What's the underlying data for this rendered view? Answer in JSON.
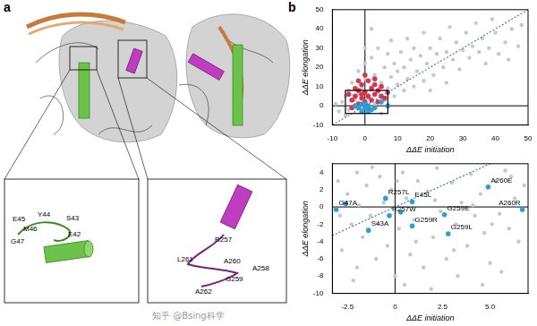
{
  "panel_labels": [
    "a",
    "b"
  ],
  "panel_a": {
    "inset_left_labels": [
      "E45",
      "Y44",
      "S43",
      "M46",
      "E42",
      "G47"
    ],
    "inset_right_labels": [
      "R257",
      "L261",
      "A260",
      "A258",
      "G259",
      "A262"
    ]
  },
  "watermark": "知乎 @Bsing科学",
  "chart_data": [
    {
      "type": "scatter",
      "x_label": "ΔΔE initiation",
      "y_label": "ΔΔE elongation",
      "xlim": [
        -10,
        50
      ],
      "ylim": [
        -10,
        50
      ],
      "xticks": [
        -10,
        0,
        10,
        20,
        30,
        40,
        50
      ],
      "yticks": [
        -10,
        0,
        10,
        20,
        30,
        40,
        50
      ],
      "grid": false,
      "hlines": [
        0
      ],
      "vlines": [
        0
      ],
      "reference_line": {
        "slope": 1,
        "intercept": 0,
        "color": "#3a7fc8",
        "line_style": "dotted"
      },
      "zoom_box": {
        "x": [
          -6,
          7
        ],
        "y": [
          -4,
          8
        ]
      },
      "series": [
        {
          "color": "#c8c8c8",
          "points": [
            [
              -8,
              -3
            ],
            [
              -7,
              2
            ],
            [
              -6,
              5
            ],
            [
              -5,
              -2
            ],
            [
              -5,
              8
            ],
            [
              -4,
              12
            ],
            [
              -3,
              -1
            ],
            [
              -3,
              3
            ],
            [
              -2,
              6
            ],
            [
              -2,
              18
            ],
            [
              -1,
              -2
            ],
            [
              -1,
              9
            ],
            [
              0,
              14
            ],
            [
              0,
              22
            ],
            [
              1,
              4
            ],
            [
              1,
              -3
            ],
            [
              2,
              10
            ],
            [
              2,
              25
            ],
            [
              3,
              1
            ],
            [
              3,
              16
            ],
            [
              4,
              7
            ],
            [
              4,
              30
            ],
            [
              5,
              12
            ],
            [
              5,
              -4
            ],
            [
              6,
              20
            ],
            [
              6,
              3
            ],
            [
              7,
              9
            ],
            [
              7,
              27
            ],
            [
              8,
              15
            ],
            [
              8,
              34
            ],
            [
              9,
              5
            ],
            [
              9,
              22
            ],
            [
              10,
              11
            ],
            [
              10,
              18
            ],
            [
              11,
              28
            ],
            [
              12,
              8
            ],
            [
              12,
              20
            ],
            [
              13,
              14
            ],
            [
              13,
              35
            ],
            [
              14,
              24
            ],
            [
              15,
              10
            ],
            [
              15,
              30
            ],
            [
              16,
              18
            ],
            [
              17,
              26
            ],
            [
              18,
              13
            ],
            [
              18,
              38
            ],
            [
              19,
              22
            ],
            [
              20,
              30
            ],
            [
              21,
              16
            ],
            [
              22,
              27
            ],
            [
              23,
              35
            ],
            [
              24,
              20
            ],
            [
              25,
              28
            ],
            [
              26,
              41
            ],
            [
              27,
              24
            ],
            [
              28,
              33
            ],
            [
              29,
              19
            ],
            [
              30,
              29
            ],
            [
              31,
              38
            ],
            [
              32,
              25
            ],
            [
              33,
              31
            ],
            [
              34,
              43
            ],
            [
              35,
              28
            ],
            [
              36,
              35
            ],
            [
              37,
              22
            ],
            [
              38,
              30
            ],
            [
              40,
              38
            ],
            [
              41,
              27
            ],
            [
              43,
              33
            ],
            [
              45,
              40
            ],
            [
              47,
              31
            ],
            [
              48,
              42
            ],
            [
              44,
              24
            ],
            [
              39,
              45
            ],
            [
              -6,
              -5
            ],
            [
              -9,
              1
            ],
            [
              2,
              40
            ],
            [
              0,
              30
            ],
            [
              20,
              8
            ],
            [
              25,
              12
            ]
          ]
        },
        {
          "color": "#d8344e",
          "points": [
            [
              -4,
              3
            ],
            [
              -3,
              5
            ],
            [
              -2,
              1
            ],
            [
              -2,
              8
            ],
            [
              -1,
              4
            ],
            [
              -1,
              11
            ],
            [
              0,
              2
            ],
            [
              0,
              7
            ],
            [
              1,
              5
            ],
            [
              1,
              13
            ],
            [
              2,
              3
            ],
            [
              2,
              9
            ],
            [
              3,
              6
            ],
            [
              3,
              11
            ],
            [
              4,
              2
            ],
            [
              4,
              8
            ],
            [
              5,
              5
            ],
            [
              -5,
              6
            ],
            [
              -3,
              9
            ],
            [
              6,
              4
            ],
            [
              -2,
              13
            ],
            [
              0,
              16
            ],
            [
              1,
              -1
            ],
            [
              -4,
              -1
            ],
            [
              7,
              7
            ],
            [
              3,
              14
            ],
            [
              5,
              10
            ],
            [
              -1,
              6
            ]
          ]
        },
        {
          "color": "#2b9fd8",
          "points": [
            [
              -3,
              0
            ],
            [
              -2,
              -1
            ],
            [
              -1,
              1
            ],
            [
              0,
              -1
            ],
            [
              1,
              0
            ],
            [
              2,
              -2
            ],
            [
              3,
              -1
            ],
            [
              5,
              2
            ],
            [
              7,
              0
            ],
            [
              1,
              -3
            ],
            [
              -1,
              -3
            ],
            [
              0,
              1
            ]
          ]
        }
      ]
    },
    {
      "type": "scatter",
      "x_label": "ΔΔE initiation",
      "y_label": "ΔΔE elongation",
      "xlim": [
        -3.3,
        7
      ],
      "ylim": [
        -10,
        5
      ],
      "xticks": [
        -2.5,
        0,
        2.5,
        {
          "value": 5,
          "label": "5.0"
        }
      ],
      "yticks": [
        -10,
        -8,
        -6,
        -4,
        -2,
        0,
        2,
        4
      ],
      "grid": false,
      "hlines": [
        0
      ],
      "vlines": [
        0
      ],
      "reference_line": {
        "slope": 1,
        "intercept": 0,
        "color": "#3a7fc8",
        "line_style": "dotted"
      },
      "series": [
        {
          "color": "#c8c8c8",
          "points": [
            [
              -3,
              3
            ],
            [
              -2.8,
              -5
            ],
            [
              -2.5,
              1.5
            ],
            [
              -2.3,
              -2
            ],
            [
              -2,
              4
            ],
            [
              -2,
              -7
            ],
            [
              -1.7,
              -3.5
            ],
            [
              -1.5,
              2.5
            ],
            [
              -1.3,
              -1
            ],
            [
              -1,
              -6
            ],
            [
              -0.8,
              3.5
            ],
            [
              -0.6,
              0.5
            ],
            [
              -0.4,
              -4.5
            ],
            [
              -0.2,
              2
            ],
            [
              0,
              -8
            ],
            [
              0.2,
              -2.5
            ],
            [
              0.4,
              4
            ],
            [
              0.6,
              1
            ],
            [
              0.8,
              -5.5
            ],
            [
              1,
              -1.5
            ],
            [
              1.2,
              3
            ],
            [
              1.5,
              -7
            ],
            [
              1.7,
              1.8
            ],
            [
              2,
              -3.5
            ],
            [
              2.2,
              4.5
            ],
            [
              2.4,
              -0.5
            ],
            [
              2.7,
              -6
            ],
            [
              3,
              2.8
            ],
            [
              3.2,
              -2
            ],
            [
              3.5,
              0.5
            ],
            [
              3.8,
              -4.5
            ],
            [
              4,
              3.8
            ],
            [
              4.2,
              -1
            ],
            [
              4.5,
              1.5
            ],
            [
              4.7,
              -3
            ],
            [
              5,
              -6.5
            ],
            [
              5.3,
              3
            ],
            [
              5.5,
              -0.8
            ],
            [
              5.8,
              4.2
            ],
            [
              6,
              -2.5
            ],
            [
              6.3,
              1
            ],
            [
              6.5,
              -4
            ],
            [
              6.8,
              2.5
            ],
            [
              -2.9,
              -1
            ],
            [
              -1.9,
              0.2
            ],
            [
              -0.9,
              -2
            ],
            [
              0.1,
              3
            ],
            [
              1.1,
              -4
            ],
            [
              2.1,
              0.8
            ],
            [
              3.1,
              -5
            ],
            [
              4.1,
              0.2
            ],
            [
              5.1,
              -2
            ],
            [
              6.1,
              3.5
            ],
            [
              -2.2,
              -8.5
            ],
            [
              0.5,
              -9
            ],
            [
              3.3,
              -8
            ],
            [
              5.6,
              -7.5
            ],
            [
              -1.2,
              4.6
            ],
            [
              1.9,
              -9.5
            ],
            [
              4.6,
              -9
            ]
          ]
        },
        {
          "color": "#2b9fd8",
          "points": [
            [
              -3.1,
              -0.3
            ],
            [
              -2.6,
              0.4
            ],
            [
              -0.5,
              1.0
            ],
            [
              0.9,
              0.6
            ],
            [
              -0.3,
              -1.0
            ],
            [
              4.9,
              2.3
            ],
            [
              2.6,
              -0.9
            ],
            [
              0.9,
              -2.2
            ],
            [
              -1.4,
              -2.7
            ],
            [
              2.8,
              -3.1
            ],
            [
              6.7,
              -0.3
            ],
            [
              0.3,
              -0.6
            ]
          ],
          "point_labels": [
            "G47A",
            null,
            "R257L",
            "E45L",
            "R257W",
            "A260E",
            "G259E",
            "G259R",
            "S43A",
            "G259L",
            "A260R",
            null
          ]
        }
      ]
    }
  ]
}
